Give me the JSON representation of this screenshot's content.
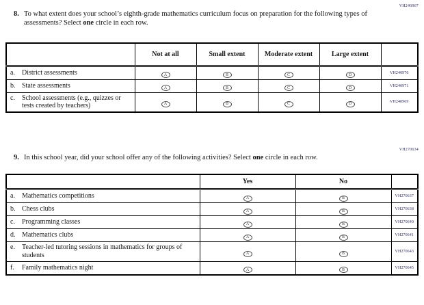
{
  "question8": {
    "code": "VH240967",
    "number": "8.",
    "text_segments": [
      {
        "text": "To what extent does your school’s eighth-grade mathematics curriculum focus on preparation for the following types of assessments? Select ",
        "bold": false
      },
      {
        "text": "one",
        "bold": true
      },
      {
        "text": " circle in each row.",
        "bold": false
      }
    ],
    "table": {
      "option_headers": [
        "Not at all",
        "Small extent",
        "Moderate extent",
        "Large extent"
      ],
      "bubble_letters": [
        "A",
        "B",
        "C",
        "D"
      ],
      "rows": [
        {
          "label": "a.",
          "text": "District assessments",
          "code": "VH240970"
        },
        {
          "label": "b.",
          "text": "State assessments",
          "code": "VH240971"
        },
        {
          "label": "c.",
          "text": "School assessments (e.g., quizzes or tests created by teachers)",
          "code": "VH240969"
        }
      ]
    }
  },
  "question9": {
    "code": "VH270634",
    "number": "9.",
    "text_segments": [
      {
        "text": "In this school year, did your school offer any of the following activities? Select ",
        "bold": false
      },
      {
        "text": "one",
        "bold": true
      },
      {
        "text": " circle in each row.",
        "bold": false
      }
    ],
    "table": {
      "option_headers": [
        "Yes",
        "No"
      ],
      "bubble_letters": [
        "A",
        "B"
      ],
      "rows": [
        {
          "label": "a.",
          "text": "Mathematics competitions",
          "code": "VH270637"
        },
        {
          "label": "b.",
          "text": "Chess clubs",
          "code": "VH270638"
        },
        {
          "label": "c.",
          "text": "Programming classes",
          "code": "VH270640"
        },
        {
          "label": "d.",
          "text": "Mathematics clubs",
          "code": "VH270641"
        },
        {
          "label": "e.",
          "text": "Teacher-led tutoring sessions in mathematics for groups of students",
          "code": "VH270643"
        },
        {
          "label": "f.",
          "text": "Family mathematics night",
          "code": "VH270645"
        }
      ]
    }
  }
}
